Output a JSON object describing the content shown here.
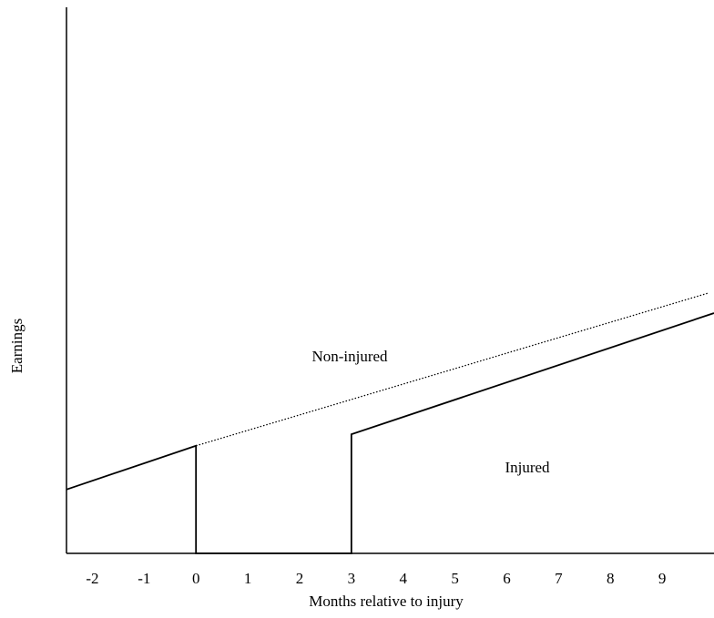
{
  "chart_data": {
    "type": "line",
    "x_label": "Months relative to injury",
    "y_label": "Earnings",
    "xlim": [
      -2.5,
      10
    ],
    "ylim": [
      0,
      100
    ],
    "xticks": [
      -2,
      -1,
      0,
      1,
      2,
      3,
      4,
      5,
      6,
      7,
      8,
      9
    ],
    "series": [
      {
        "name": "Injured",
        "color": "#000000",
        "style": "solid",
        "x": [
          -2.5,
          0,
          0,
          3,
          3,
          10
        ],
        "values": [
          11.7,
          19.7,
          0,
          0,
          21.8,
          44
        ]
      },
      {
        "name": "Non-injured",
        "color": "#000000",
        "style": "dotted",
        "x": [
          0,
          9.9
        ],
        "values": [
          19.7,
          47.7
        ]
      }
    ]
  }
}
